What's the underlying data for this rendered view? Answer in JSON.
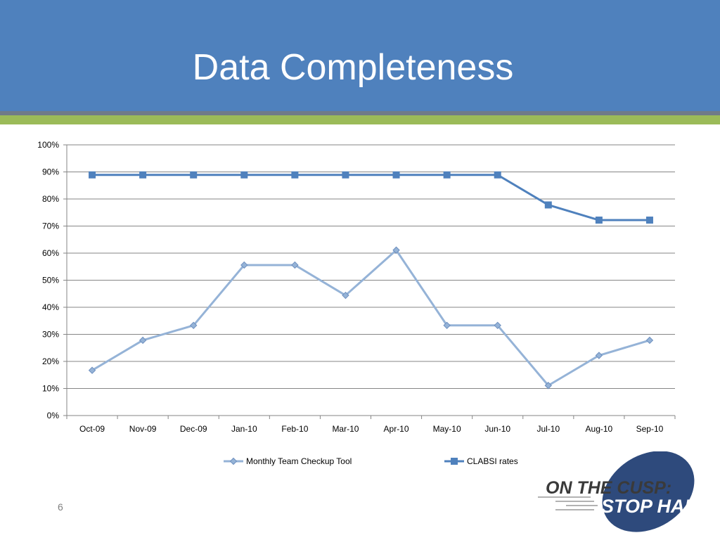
{
  "slide": {
    "title": "Data Completeness",
    "page_number": "6",
    "colors": {
      "header_bg": "#4f81bd",
      "accent_gray": "#6f7b89",
      "accent_green": "#9bbb59"
    }
  },
  "logo": {
    "text_line1": "ON THE CUSP:",
    "text_line2": "STOP HAI",
    "ellipse_color": "#2e4a7c"
  },
  "chart_data": {
    "type": "line",
    "title": "",
    "xlabel": "",
    "ylabel": "",
    "categories": [
      "Oct-09",
      "Nov-09",
      "Dec-09",
      "Jan-10",
      "Feb-10",
      "Mar-10",
      "Apr-10",
      "May-10",
      "Jun-10",
      "Jul-10",
      "Aug-10",
      "Sep-10"
    ],
    "ylim": [
      0,
      100
    ],
    "yticks": [
      "0%",
      "10%",
      "20%",
      "30%",
      "40%",
      "50%",
      "60%",
      "70%",
      "80%",
      "90%",
      "100%"
    ],
    "grid": true,
    "legend_position": "bottom",
    "series": [
      {
        "name": "Monthly Team Checkup Tool",
        "marker": "diamond",
        "color": "#95b3d7",
        "values": [
          16.7,
          27.8,
          33.3,
          55.6,
          55.6,
          44.4,
          61.1,
          33.3,
          33.3,
          11.1,
          22.2,
          27.8
        ]
      },
      {
        "name": "CLABSI rates",
        "marker": "square",
        "color": "#4f81bd",
        "values": [
          88.9,
          88.9,
          88.9,
          88.9,
          88.9,
          88.9,
          88.9,
          88.9,
          88.9,
          77.8,
          72.2,
          72.2
        ]
      }
    ]
  }
}
